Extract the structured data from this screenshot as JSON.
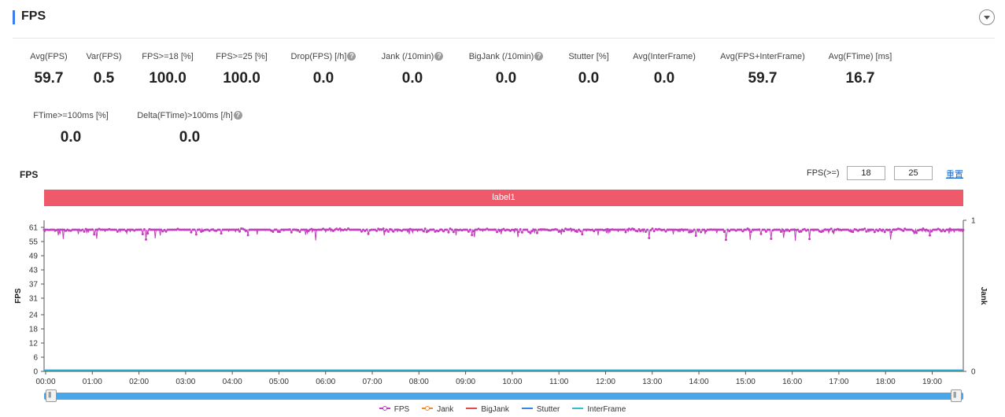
{
  "header": {
    "title": "FPS"
  },
  "metrics_row1": [
    {
      "label": "Avg(FPS)",
      "value": "59.7",
      "help": false
    },
    {
      "label": "Var(FPS)",
      "value": "0.5",
      "help": false
    },
    {
      "label": "FPS>=18 [%]",
      "value": "100.0",
      "help": false
    },
    {
      "label": "FPS>=25 [%]",
      "value": "100.0",
      "help": false
    },
    {
      "label": "Drop(FPS) [/h]",
      "value": "0.0",
      "help": true
    },
    {
      "label": "Jank (/10min)",
      "value": "0.0",
      "help": true
    },
    {
      "label": "BigJank (/10min)",
      "value": "0.0",
      "help": true
    },
    {
      "label": "Stutter [%]",
      "value": "0.0",
      "help": false
    },
    {
      "label": "Avg(InterFrame)",
      "value": "0.0",
      "help": false
    },
    {
      "label": "Avg(FPS+InterFrame)",
      "value": "59.7",
      "help": false
    },
    {
      "label": "Avg(FTime) [ms]",
      "value": "16.7",
      "help": false
    }
  ],
  "metrics_row2": [
    {
      "label": "FTime>=100ms [%]",
      "value": "0.0",
      "help": false
    },
    {
      "label": "Delta(FTime)>100ms [/h]",
      "value": "0.0",
      "help": true
    }
  ],
  "chart_section": {
    "title": "FPS",
    "fps_filter_label": "FPS(>=)",
    "fps_threshold_1": "18",
    "fps_threshold_2": "25",
    "reset_label": "重置",
    "band_label": "label1",
    "band_color": "#ef5a6a",
    "help_glyph": "?"
  },
  "chart_data": {
    "type": "line",
    "title": "",
    "xlabel": "",
    "ylabel": "FPS",
    "y2label": "Jank",
    "ylim": [
      0,
      64
    ],
    "y2lim": [
      0,
      1
    ],
    "yticks": [
      0,
      6,
      12,
      18,
      24,
      31,
      37,
      43,
      49,
      55,
      61
    ],
    "y2ticks": [
      0,
      1
    ],
    "xticks": [
      "00:00",
      "01:00",
      "02:00",
      "03:00",
      "04:00",
      "05:00",
      "06:00",
      "07:00",
      "08:00",
      "09:00",
      "10:00",
      "11:00",
      "12:00",
      "13:00",
      "14:00",
      "15:00",
      "16:00",
      "17:00",
      "18:00",
      "19:00"
    ],
    "x_minutes_range": [
      0,
      19.7
    ],
    "grid": false,
    "legend_position": "bottom",
    "series": [
      {
        "name": "FPS",
        "color": "#c23fbd",
        "axis": "left",
        "typical": 60,
        "min_dips": 55
      },
      {
        "name": "Jank",
        "color": "#f08a2c",
        "axis": "right",
        "constant": 0
      },
      {
        "name": "BigJank",
        "color": "#e34b4b",
        "axis": "right",
        "constant": 0
      },
      {
        "name": "Stutter",
        "color": "#3b86d9",
        "axis": "right",
        "constant": 0
      },
      {
        "name": "InterFrame",
        "color": "#2fc1d0",
        "axis": "right",
        "constant": 0
      }
    ]
  }
}
